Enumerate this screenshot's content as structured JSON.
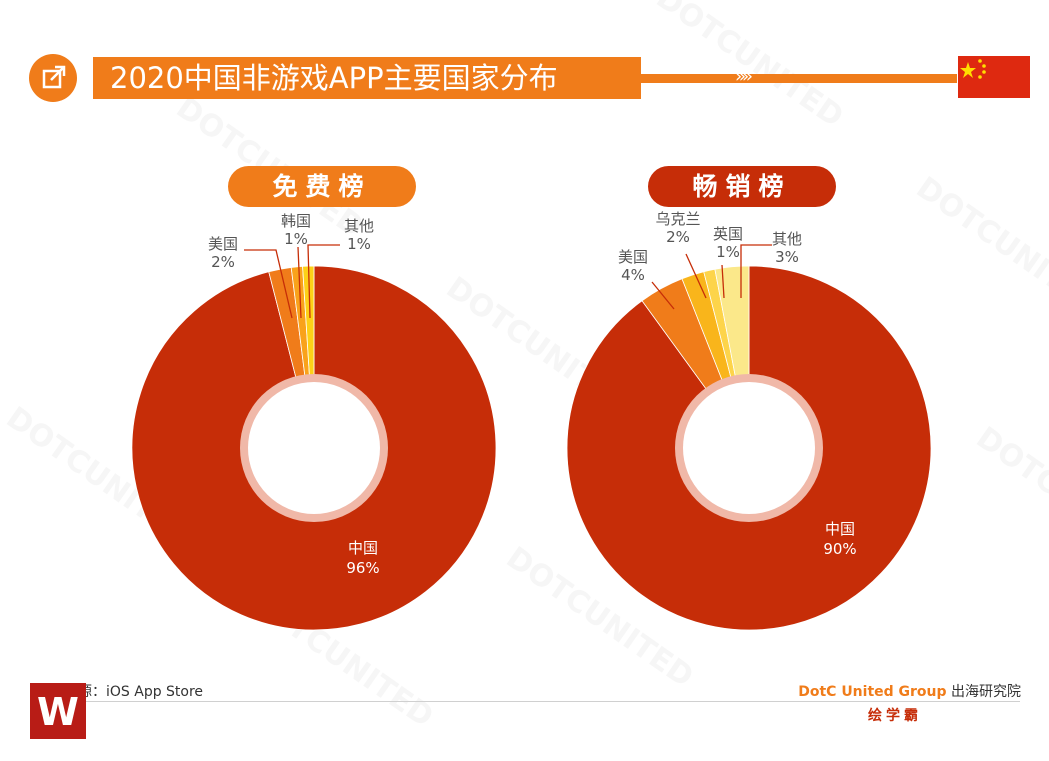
{
  "title": "2020中国非游戏APP主要国家分布",
  "title_decoration": "»»",
  "watermark": "DOTCUNITED",
  "colors": {
    "accent": "#f07c1a",
    "dark_red": "#c62d08",
    "flag_red": "#de2910",
    "flag_star": "#ffde00"
  },
  "icons": [
    "share-icon",
    "china-flag-icon"
  ],
  "chart_data": [
    {
      "type": "pie",
      "title": "免费榜",
      "slices": [
        {
          "label": "中国",
          "value": 96,
          "value_text": "96%",
          "color": "#c62d08"
        },
        {
          "label": "美国",
          "value": 2,
          "value_text": "2%",
          "color": "#f07c1a"
        },
        {
          "label": "韩国",
          "value": 1,
          "value_text": "1%",
          "color": "#f9a21b"
        },
        {
          "label": "其他",
          "value": 1,
          "value_text": "1%",
          "color": "#fdd017"
        }
      ]
    },
    {
      "type": "pie",
      "title": "畅销榜",
      "slices": [
        {
          "label": "中国",
          "value": 90,
          "value_text": "90%",
          "color": "#c62d08"
        },
        {
          "label": "美国",
          "value": 4,
          "value_text": "4%",
          "color": "#f07c1a"
        },
        {
          "label": "乌克兰",
          "value": 2,
          "value_text": "2%",
          "color": "#f9b51b"
        },
        {
          "label": "英国",
          "value": 1,
          "value_text": "1%",
          "color": "#fdd44a"
        },
        {
          "label": "其他",
          "value": 3,
          "value_text": "3%",
          "color": "#fbe88a"
        }
      ]
    }
  ],
  "footer": {
    "source": "数据来源：iOS App Store",
    "org_brand": "DotC United Group",
    "org_suffix": " 出海研究院",
    "logo_letter": "W",
    "logo_caption": "绘学霸"
  }
}
